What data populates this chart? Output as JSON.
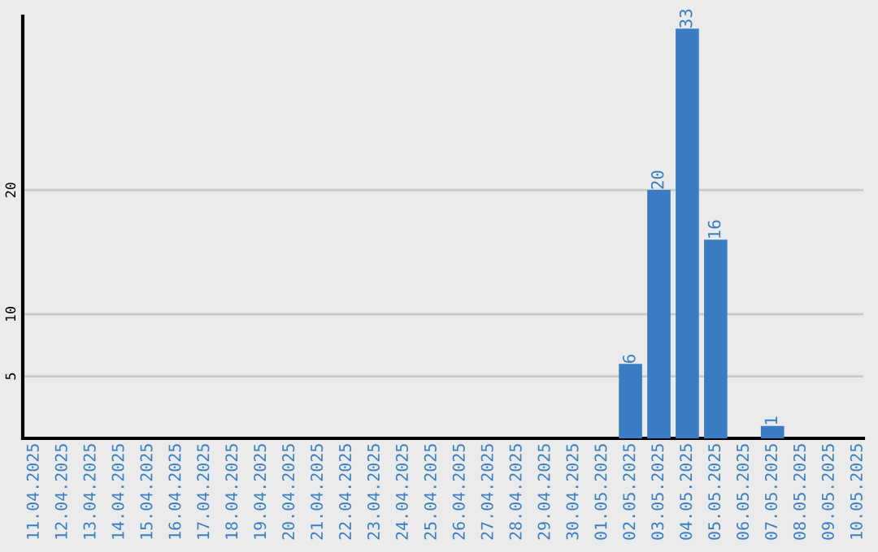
{
  "chart_data": {
    "type": "bar",
    "categories": [
      "11.04.2025",
      "12.04.2025",
      "13.04.2025",
      "14.04.2025",
      "15.04.2025",
      "16.04.2025",
      "17.04.2025",
      "18.04.2025",
      "19.04.2025",
      "20.04.2025",
      "21.04.2025",
      "22.04.2025",
      "23.04.2025",
      "24.04.2025",
      "25.04.2025",
      "26.04.2025",
      "27.04.2025",
      "28.04.2025",
      "29.04.2025",
      "30.04.2025",
      "01.05.2025",
      "02.05.2025",
      "03.05.2025",
      "04.05.2025",
      "05.05.2025",
      "06.05.2025",
      "07.05.2025",
      "08.05.2025",
      "09.05.2025",
      "10.05.2025"
    ],
    "values": [
      0,
      0,
      0,
      0,
      0,
      0,
      0,
      0,
      0,
      0,
      0,
      0,
      0,
      0,
      0,
      0,
      0,
      0,
      0,
      0,
      0,
      6,
      20,
      33,
      16,
      0,
      1,
      0,
      0,
      0
    ],
    "value_labels": [
      null,
      null,
      null,
      null,
      null,
      null,
      null,
      null,
      null,
      null,
      null,
      null,
      null,
      null,
      null,
      null,
      null,
      null,
      null,
      null,
      null,
      "6",
      "20",
      "33",
      "16",
      null,
      "1",
      null,
      null,
      null
    ],
    "color": "#3b7dc4",
    "ylim": [
      0,
      34
    ],
    "yticks": [
      5,
      10,
      20
    ],
    "grid": "y",
    "legend": false
  }
}
